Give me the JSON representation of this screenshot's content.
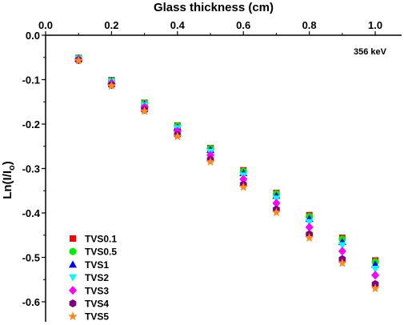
{
  "chart_data": {
    "type": "scatter",
    "xlabel": "Glass thickness (cm)",
    "ylabel": "Ln(I/Io)",
    "ylabel_parts": {
      "main": "Ln(I/I",
      "sub": "o",
      "close": ")"
    },
    "annotation": "356 keV",
    "xlim": [
      0.0,
      1.08
    ],
    "ylim": [
      -0.645,
      0.0
    ],
    "xticks": [
      0.0,
      0.2,
      0.4,
      0.6,
      0.8,
      1.0
    ],
    "xtick_labels": [
      "0.0",
      "0.2",
      "0.4",
      "0.6",
      "0.8",
      "1.0"
    ],
    "yticks": [
      0.0,
      -0.1,
      -0.2,
      -0.3,
      -0.4,
      -0.5,
      -0.6
    ],
    "ytick_labels": [
      "0.0",
      "-0.1",
      "-0.2",
      "-0.3",
      "-0.4",
      "-0.5",
      "-0.6"
    ],
    "grid": false,
    "legend_position": "bottom-left",
    "x": [
      0.1,
      0.2,
      0.3,
      0.4,
      0.5,
      0.6,
      0.7,
      0.8,
      0.9,
      1.0
    ],
    "series": [
      {
        "name": "TVS0.1",
        "color": "#ff0000",
        "marker": "square",
        "values": [
          -0.051,
          -0.101,
          -0.152,
          -0.203,
          -0.254,
          -0.304,
          -0.355,
          -0.405,
          -0.456,
          -0.507
        ]
      },
      {
        "name": "TVS0.5",
        "color": "#00ee00",
        "marker": "circle",
        "values": [
          -0.051,
          -0.102,
          -0.153,
          -0.204,
          -0.255,
          -0.306,
          -0.357,
          -0.408,
          -0.459,
          -0.51
        ]
      },
      {
        "name": "TVS1",
        "color": "#0000ff",
        "marker": "triangle-up",
        "values": [
          -0.052,
          -0.103,
          -0.155,
          -0.207,
          -0.258,
          -0.31,
          -0.361,
          -0.413,
          -0.465,
          -0.516
        ]
      },
      {
        "name": "TVS2",
        "color": "#00ffff",
        "marker": "triangle-down",
        "values": [
          -0.053,
          -0.105,
          -0.158,
          -0.21,
          -0.263,
          -0.316,
          -0.368,
          -0.421,
          -0.473,
          -0.526
        ]
      },
      {
        "name": "TVS3",
        "color": "#ff00ff",
        "marker": "diamond",
        "values": [
          -0.054,
          -0.108,
          -0.162,
          -0.216,
          -0.27,
          -0.324,
          -0.378,
          -0.432,
          -0.486,
          -0.54
        ]
      },
      {
        "name": "TVS4",
        "color": "#800080",
        "marker": "hexagon",
        "values": [
          -0.056,
          -0.112,
          -0.168,
          -0.224,
          -0.28,
          -0.336,
          -0.392,
          -0.448,
          -0.504,
          -0.56
        ]
      },
      {
        "name": "TVS5",
        "color": "#ff8c1a",
        "marker": "star",
        "values": [
          -0.057,
          -0.114,
          -0.171,
          -0.228,
          -0.285,
          -0.342,
          -0.399,
          -0.456,
          -0.513,
          -0.57
        ]
      }
    ]
  }
}
